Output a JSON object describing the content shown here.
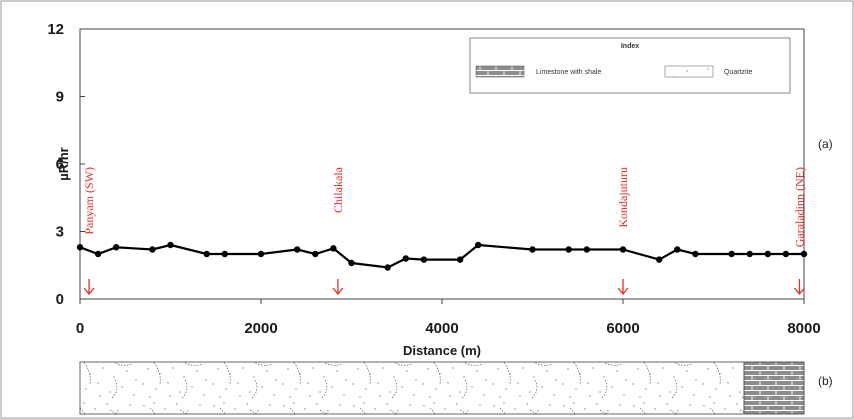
{
  "chart_data": {
    "type": "line",
    "xlabel": "Distance (m)",
    "ylabel": "µR/hr",
    "xlim": [
      0,
      8000
    ],
    "ylim": [
      0,
      12
    ],
    "xticks": [
      "0",
      "2000",
      "4000",
      "6000",
      "8000"
    ],
    "yticks": [
      "0",
      "3",
      "6",
      "9",
      "12"
    ],
    "grid": false,
    "series": [
      {
        "x": [
          0,
          200,
          400,
          800,
          1000,
          1400,
          1600,
          2000,
          2400,
          2600,
          2800,
          3000,
          3400,
          3600,
          3800,
          4200,
          4400,
          5000,
          5400,
          5600,
          6000,
          6400,
          6600,
          6800,
          7200,
          7400,
          7600,
          7800,
          8000
        ],
        "y": [
          2.3,
          2.0,
          2.3,
          2.2,
          2.4,
          2.0,
          2.0,
          2.0,
          2.2,
          2.0,
          2.25,
          1.6,
          1.4,
          1.8,
          1.75,
          1.75,
          2.4,
          2.2,
          2.2,
          2.2,
          2.2,
          1.75,
          2.2,
          2.0,
          2.0,
          2.0,
          2.0,
          2.0,
          2.0
        ]
      }
    ],
    "annotations": [
      {
        "text": "Panyam (SW)",
        "x": 100
      },
      {
        "text": "Chilakala",
        "x": 2850
      },
      {
        "text": "Kondajuturu",
        "x": 6000
      },
      {
        "text": "Garaladinn (NE)",
        "x": 7950
      }
    ],
    "legend": {
      "title": "Index",
      "position": "top-right",
      "items": [
        {
          "label": "Limestone with shale",
          "pattern": "limestone"
        },
        {
          "label": "Quartzite",
          "pattern": "quartzite"
        }
      ]
    },
    "panel_labels": [
      "(a)",
      "(b)"
    ],
    "colors": {
      "line": "#000000",
      "annotation": "#e0302b",
      "limestone": "#8c8c8c"
    }
  }
}
